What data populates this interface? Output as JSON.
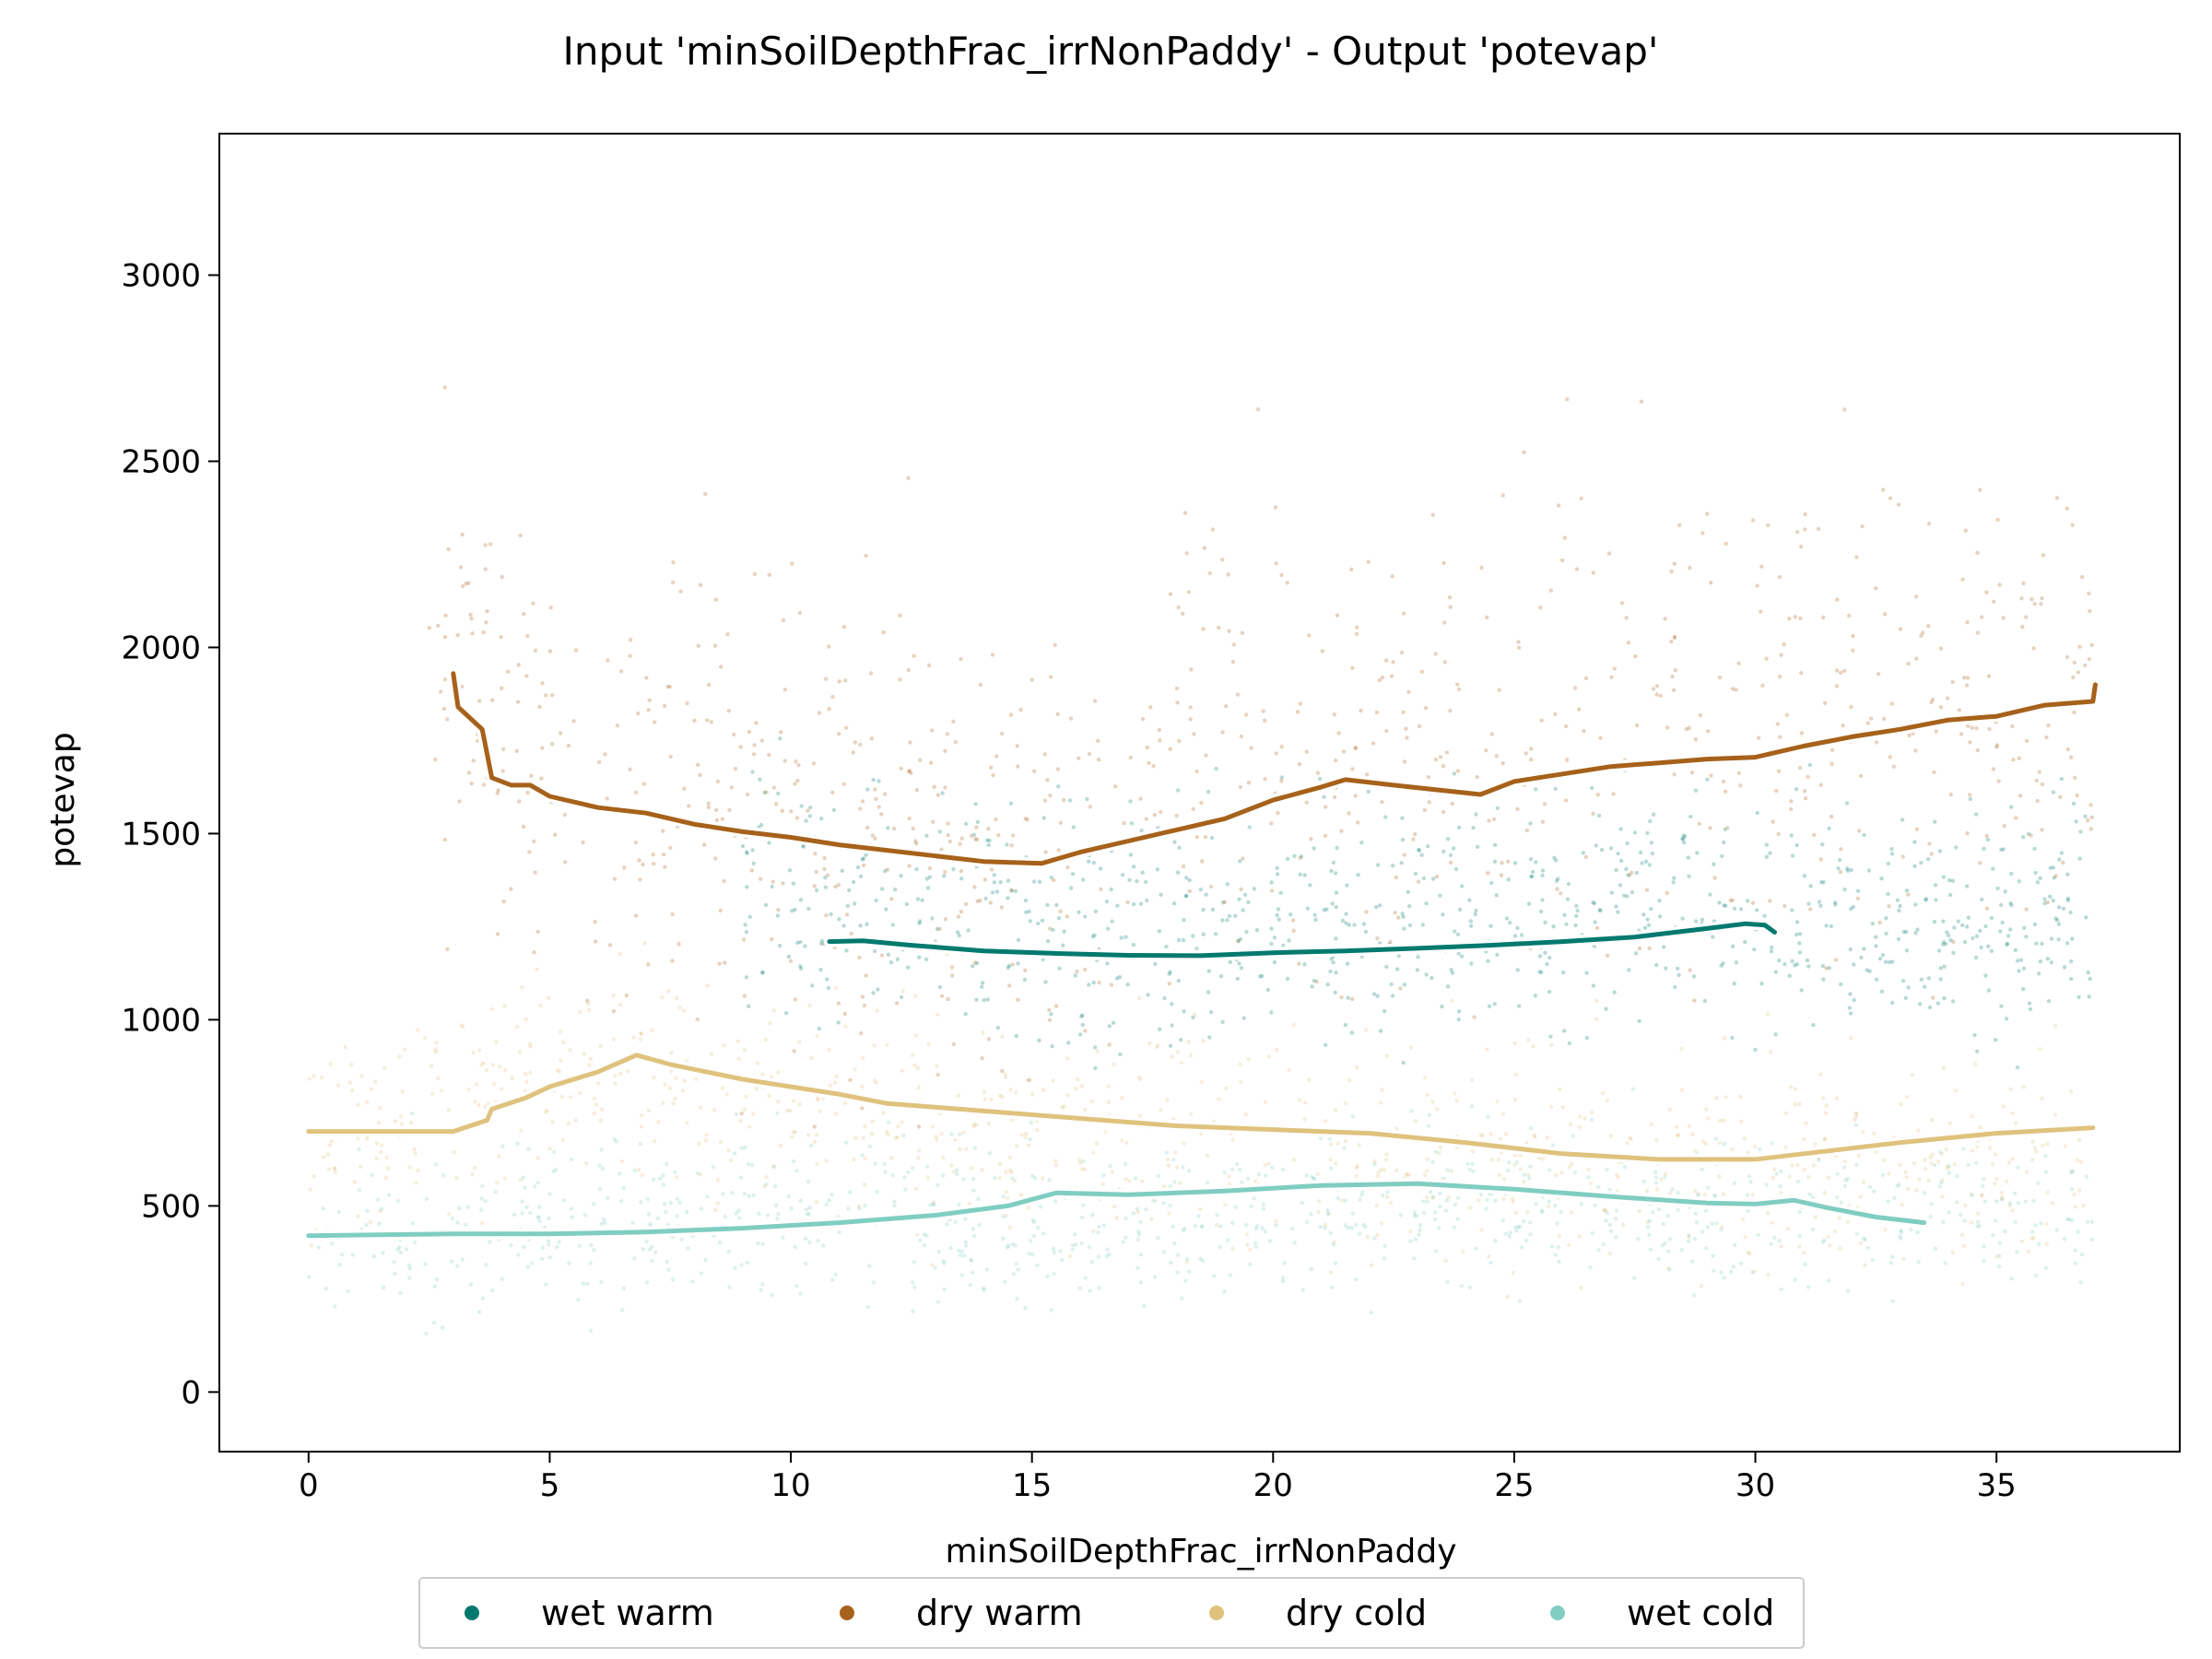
{
  "chart_data": {
    "type": "scatter",
    "title": "Input 'minSoilDepthFrac_irrNonPaddy' - Output 'potevap'",
    "xlabel": "minSoilDepthFrac_irrNonPaddy",
    "ylabel": "potevap",
    "xlim": [
      -1.85,
      38.8
    ],
    "ylim": [
      -160,
      3380
    ],
    "xticks": [
      0,
      5,
      10,
      15,
      20,
      25,
      30,
      35
    ],
    "yticks": [
      0,
      500,
      1000,
      1500,
      2000,
      2500,
      3000
    ],
    "grid": false,
    "legend_position": "bottom-center",
    "series": [
      {
        "name": "wet warm",
        "color": "#01796f",
        "trend": [
          [
            10.8,
            1210
          ],
          [
            11.5,
            1212
          ],
          [
            12.5,
            1200
          ],
          [
            14,
            1185
          ],
          [
            15.5,
            1178
          ],
          [
            17,
            1173
          ],
          [
            18.5,
            1172
          ],
          [
            20,
            1180
          ],
          [
            21.5,
            1185
          ],
          [
            23,
            1192
          ],
          [
            24.5,
            1200
          ],
          [
            26,
            1210
          ],
          [
            27.5,
            1222
          ],
          [
            29,
            1245
          ],
          [
            29.8,
            1258
          ],
          [
            30.2,
            1254
          ],
          [
            30.4,
            1235
          ]
        ],
        "scatter_center": [
          [
            9,
            1380
          ],
          [
            12,
            1300
          ],
          [
            15,
            1230
          ],
          [
            18,
            1250
          ],
          [
            21,
            1250
          ],
          [
            24,
            1270
          ],
          [
            27,
            1300
          ],
          [
            29,
            1330
          ],
          [
            30.1,
            1320
          ],
          [
            32,
            1300
          ],
          [
            35,
            1280
          ],
          [
            37,
            1280
          ]
        ]
      },
      {
        "name": "dry warm",
        "color": "#a6611a",
        "trend": [
          [
            3,
            1930
          ],
          [
            3.1,
            1840
          ],
          [
            3.6,
            1780
          ],
          [
            3.8,
            1650
          ],
          [
            4.2,
            1630
          ],
          [
            4.6,
            1630
          ],
          [
            5,
            1600
          ],
          [
            6,
            1570
          ],
          [
            7,
            1555
          ],
          [
            8,
            1525
          ],
          [
            9,
            1505
          ],
          [
            10,
            1490
          ],
          [
            11,
            1470
          ],
          [
            12,
            1455
          ],
          [
            13,
            1440
          ],
          [
            14,
            1425
          ],
          [
            15.2,
            1420
          ],
          [
            16,
            1450
          ],
          [
            17,
            1480
          ],
          [
            18,
            1510
          ],
          [
            19,
            1540
          ],
          [
            20,
            1590
          ],
          [
            21,
            1625
          ],
          [
            21.5,
            1645
          ],
          [
            22.5,
            1630
          ],
          [
            24.3,
            1605
          ],
          [
            25,
            1640
          ],
          [
            26,
            1660
          ],
          [
            27,
            1680
          ],
          [
            28,
            1690
          ],
          [
            29,
            1700
          ],
          [
            30,
            1705
          ],
          [
            31,
            1735
          ],
          [
            32,
            1760
          ],
          [
            33,
            1780
          ],
          [
            34,
            1805
          ],
          [
            35,
            1815
          ],
          [
            36,
            1845
          ],
          [
            37,
            1855
          ],
          [
            37.05,
            1900
          ]
        ],
        "scatter_center": [
          [
            2.5,
            2100
          ],
          [
            3,
            1900
          ],
          [
            4,
            1700
          ],
          [
            6,
            1650
          ],
          [
            9,
            1580
          ],
          [
            12,
            1530
          ],
          [
            15,
            1460
          ],
          [
            19,
            1750
          ],
          [
            22,
            1700
          ],
          [
            25,
            1750
          ],
          [
            28,
            1780
          ],
          [
            30,
            1850
          ],
          [
            33,
            1850
          ],
          [
            37,
            1850
          ]
        ]
      },
      {
        "name": "dry cold",
        "color": "#dfc27d",
        "trend": [
          [
            0,
            700
          ],
          [
            3,
            700
          ],
          [
            3.7,
            730
          ],
          [
            3.8,
            760
          ],
          [
            4.5,
            790
          ],
          [
            5,
            820
          ],
          [
            6,
            860
          ],
          [
            6.8,
            905
          ],
          [
            7.5,
            880
          ],
          [
            9,
            840
          ],
          [
            11,
            800
          ],
          [
            12,
            775
          ],
          [
            14,
            755
          ],
          [
            16,
            735
          ],
          [
            18,
            715
          ],
          [
            20,
            705
          ],
          [
            22,
            695
          ],
          [
            24,
            670
          ],
          [
            26,
            640
          ],
          [
            28,
            625
          ],
          [
            30,
            625
          ],
          [
            31,
            640
          ],
          [
            33,
            670
          ],
          [
            35,
            695
          ],
          [
            37,
            710
          ]
        ],
        "scatter_center": [
          [
            0,
            700
          ],
          [
            3,
            750
          ],
          [
            6,
            850
          ],
          [
            9,
            800
          ],
          [
            12,
            750
          ],
          [
            15,
            700
          ],
          [
            18,
            680
          ],
          [
            21,
            660
          ],
          [
            24,
            640
          ],
          [
            27,
            620
          ],
          [
            30,
            610
          ],
          [
            33,
            600
          ],
          [
            37,
            650
          ]
        ]
      },
      {
        "name": "wet cold",
        "color": "#80cdc1",
        "trend": [
          [
            0,
            420
          ],
          [
            3,
            425
          ],
          [
            5,
            425
          ],
          [
            7,
            430
          ],
          [
            9,
            440
          ],
          [
            11,
            455
          ],
          [
            13,
            475
          ],
          [
            14.5,
            500
          ],
          [
            15.5,
            535
          ],
          [
            17,
            530
          ],
          [
            19,
            540
          ],
          [
            21,
            555
          ],
          [
            23,
            560
          ],
          [
            25,
            545
          ],
          [
            27,
            525
          ],
          [
            29,
            508
          ],
          [
            30,
            505
          ],
          [
            30.8,
            515
          ],
          [
            31.5,
            495
          ],
          [
            32.5,
            470
          ],
          [
            33.5,
            455
          ]
        ],
        "scatter_center": [
          [
            0,
            420
          ],
          [
            3,
            430
          ],
          [
            6,
            470
          ],
          [
            9,
            480
          ],
          [
            12,
            470
          ],
          [
            15,
            460
          ],
          [
            18,
            450
          ],
          [
            21,
            500
          ],
          [
            24,
            520
          ],
          [
            27,
            480
          ],
          [
            30,
            470
          ],
          [
            33,
            500
          ],
          [
            37,
            450
          ]
        ]
      }
    ]
  }
}
